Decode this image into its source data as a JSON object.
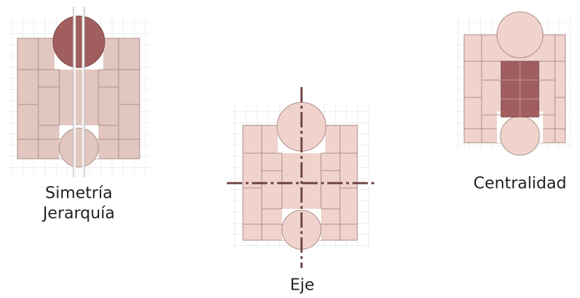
{
  "figures": [
    {
      "labels": [
        "Simetría",
        "Jerarquía"
      ]
    },
    {
      "labels": [
        "Eje"
      ]
    },
    {
      "labels": [
        "Centralidad"
      ]
    }
  ]
}
